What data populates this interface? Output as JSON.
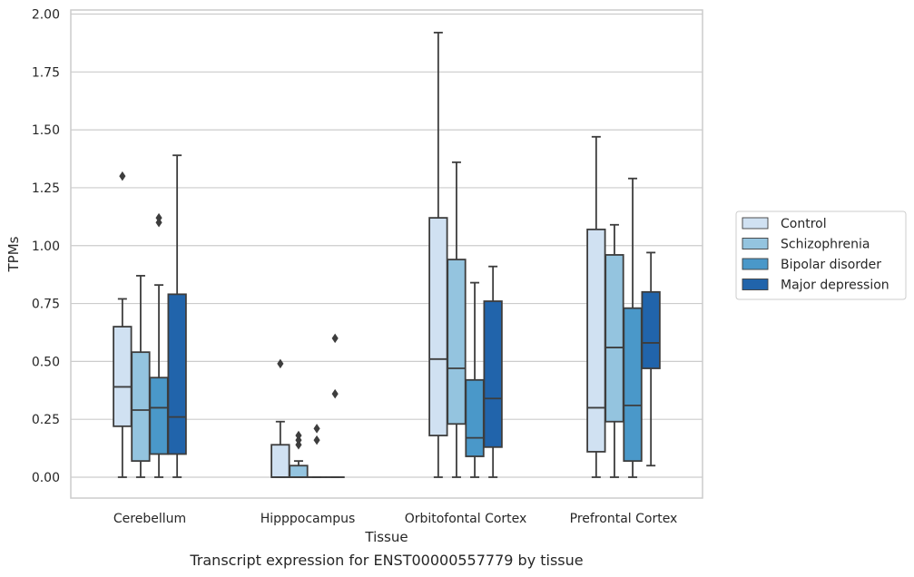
{
  "caption": "Transcript expression for ENST00000557779 by tissue",
  "chart_data": {
    "type": "box",
    "title": "",
    "xlabel": "Tissue",
    "ylabel": "TPMs",
    "ylim": [
      -0.09,
      2.02
    ],
    "yticks": [
      "0.00",
      "0.25",
      "0.50",
      "0.75",
      "1.00",
      "1.25",
      "1.50",
      "1.75",
      "2.00"
    ],
    "grid": "horizontal",
    "legend_position": "right",
    "categories": [
      "Cerebellum",
      "Hipppocampus",
      "Orbitofontal Cortex",
      "Prefrontal Cortex"
    ],
    "series": [
      {
        "name": "Control",
        "color": "#d0e1f2",
        "boxes": [
          {
            "min": 0.0,
            "q1": 0.22,
            "median": 0.39,
            "q3": 0.65,
            "max": 0.77,
            "outliers": [
              1.3
            ]
          },
          {
            "min": 0.0,
            "q1": 0.0,
            "median": 0.0,
            "q3": 0.14,
            "max": 0.24,
            "outliers": [
              0.49
            ]
          },
          {
            "min": 0.0,
            "q1": 0.18,
            "median": 0.51,
            "q3": 1.12,
            "max": 1.92,
            "outliers": []
          },
          {
            "min": 0.0,
            "q1": 0.11,
            "median": 0.3,
            "q3": 1.07,
            "max": 1.47,
            "outliers": []
          }
        ]
      },
      {
        "name": "Schizophrenia",
        "color": "#94c4df",
        "boxes": [
          {
            "min": 0.0,
            "q1": 0.07,
            "median": 0.29,
            "q3": 0.54,
            "max": 0.87,
            "outliers": []
          },
          {
            "min": 0.0,
            "q1": 0.0,
            "median": 0.0,
            "q3": 0.05,
            "max": 0.07,
            "outliers": [
              0.14,
              0.16,
              0.18
            ]
          },
          {
            "min": 0.0,
            "q1": 0.23,
            "median": 0.47,
            "q3": 0.94,
            "max": 1.36,
            "outliers": []
          },
          {
            "min": 0.0,
            "q1": 0.24,
            "median": 0.56,
            "q3": 0.96,
            "max": 1.09,
            "outliers": []
          }
        ]
      },
      {
        "name": "Bipolar disorder",
        "color": "#4a98c9",
        "boxes": [
          {
            "min": 0.0,
            "q1": 0.1,
            "median": 0.3,
            "q3": 0.43,
            "max": 0.83,
            "outliers": [
              1.1,
              1.12
            ]
          },
          {
            "min": 0.0,
            "q1": 0.0,
            "median": 0.0,
            "q3": 0.0,
            "max": 0.0,
            "outliers": [
              0.16,
              0.21
            ]
          },
          {
            "min": 0.0,
            "q1": 0.09,
            "median": 0.17,
            "q3": 0.42,
            "max": 0.84,
            "outliers": []
          },
          {
            "min": 0.0,
            "q1": 0.07,
            "median": 0.31,
            "q3": 0.73,
            "max": 1.29,
            "outliers": []
          }
        ]
      },
      {
        "name": "Major depression",
        "color": "#2164ab",
        "boxes": [
          {
            "min": 0.0,
            "q1": 0.1,
            "median": 0.26,
            "q3": 0.79,
            "max": 1.39,
            "outliers": []
          },
          {
            "min": 0.0,
            "q1": 0.0,
            "median": 0.0,
            "q3": 0.0,
            "max": 0.0,
            "outliers": [
              0.36,
              0.6
            ]
          },
          {
            "min": 0.0,
            "q1": 0.13,
            "median": 0.34,
            "q3": 0.76,
            "max": 0.91,
            "outliers": []
          },
          {
            "min": 0.05,
            "q1": 0.47,
            "median": 0.58,
            "q3": 0.8,
            "max": 0.97,
            "outliers": []
          }
        ]
      }
    ]
  }
}
